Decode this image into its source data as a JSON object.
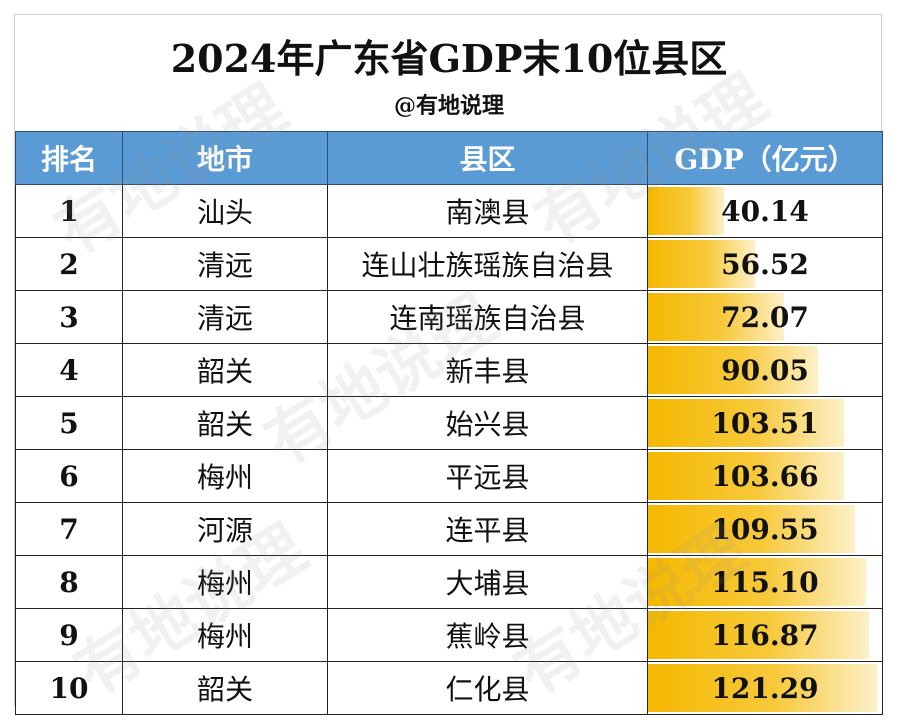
{
  "title": "2024年广东省GDP末10位县区",
  "subtitle": "@有地说理",
  "watermark": "有地说理",
  "colors": {
    "header_bg": "#5b9bd5",
    "bar": "#f5b800"
  },
  "chart_data": {
    "type": "table",
    "title": "2024年广东省GDP末10位县区",
    "columns": [
      "排名",
      "地市",
      "县区",
      "GDP（亿元）"
    ],
    "rows": [
      {
        "rank": "1",
        "city": "汕头",
        "county": "南澳县",
        "gdp": 40.14
      },
      {
        "rank": "2",
        "city": "清远",
        "county": "连山壮族瑶族自治县",
        "gdp": 56.52
      },
      {
        "rank": "3",
        "city": "清远",
        "county": "连南瑶族自治县",
        "gdp": 72.07
      },
      {
        "rank": "4",
        "city": "韶关",
        "county": "新丰县",
        "gdp": 90.05
      },
      {
        "rank": "5",
        "city": "韶关",
        "county": "始兴县",
        "gdp": 103.51
      },
      {
        "rank": "6",
        "city": "梅州",
        "county": "平远县",
        "gdp": 103.66
      },
      {
        "rank": "7",
        "city": "河源",
        "county": "连平县",
        "gdp": 109.55
      },
      {
        "rank": "8",
        "city": "梅州",
        "county": "大埔县",
        "gdp": 115.1
      },
      {
        "rank": "9",
        "city": "梅州",
        "county": "蕉岭县",
        "gdp": 116.87
      },
      {
        "rank": "10",
        "city": "韶关",
        "county": "仁化县",
        "gdp": 121.29
      }
    ],
    "bar_max": 121.29
  }
}
